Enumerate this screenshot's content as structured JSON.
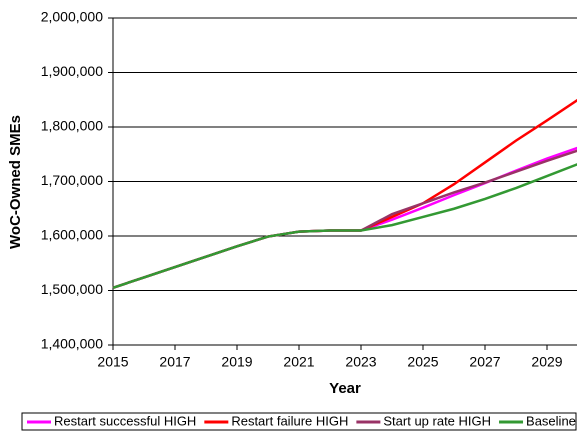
{
  "chart_data": {
    "type": "line",
    "x_label": "Year",
    "y_label": "WoC-Owned SMEs",
    "x": [
      2015,
      2016,
      2017,
      2018,
      2019,
      2020,
      2021,
      2022,
      2023,
      2024,
      2025,
      2026,
      2027,
      2028,
      2029,
      2030
    ],
    "series": [
      {
        "name": "Restart successful HIGH",
        "color": "#ff00ff",
        "values": [
          1505000,
          1524000,
          1543000,
          1562000,
          1581000,
          1599000,
          1608000,
          1610000,
          1610000,
          1630000,
          1652000,
          1675000,
          1697000,
          1720000,
          1742000,
          1762000
        ]
      },
      {
        "name": "Restart failure HIGH",
        "color": "#ff0000",
        "values": [
          1505000,
          1524000,
          1543000,
          1562000,
          1581000,
          1599000,
          1608000,
          1610000,
          1610000,
          1635000,
          1660000,
          1695000,
          1735000,
          1775000,
          1812000,
          1850000
        ]
      },
      {
        "name": "Start up rate HIGH",
        "color": "#993366",
        "values": [
          1505000,
          1524000,
          1543000,
          1562000,
          1581000,
          1599000,
          1608000,
          1610000,
          1610000,
          1640000,
          1660000,
          1680000,
          1698000,
          1718000,
          1738000,
          1757000
        ]
      },
      {
        "name": "Baseline",
        "color": "#339933",
        "values": [
          1505000,
          1524000,
          1543000,
          1562000,
          1581000,
          1599000,
          1608000,
          1610000,
          1610000,
          1620000,
          1635000,
          1650000,
          1668000,
          1688000,
          1710000,
          1732000
        ]
      }
    ],
    "xlim": [
      2015,
      2030
    ],
    "xticks": [
      2015,
      2017,
      2019,
      2021,
      2023,
      2025,
      2027,
      2029
    ],
    "ylim": [
      1400000,
      2000000
    ],
    "yticks": [
      {
        "value": 1400000,
        "label": "1,400,000"
      },
      {
        "value": 1500000,
        "label": "1,500,000"
      },
      {
        "value": 1600000,
        "label": "1,600,000"
      },
      {
        "value": 1700000,
        "label": "1,700,000"
      },
      {
        "value": 1800000,
        "label": "1,800,000"
      },
      {
        "value": 1900000,
        "label": "1,900,000"
      },
      {
        "value": 2000000,
        "label": "2,000,000"
      }
    ],
    "grid": true,
    "legend": "bottom"
  }
}
